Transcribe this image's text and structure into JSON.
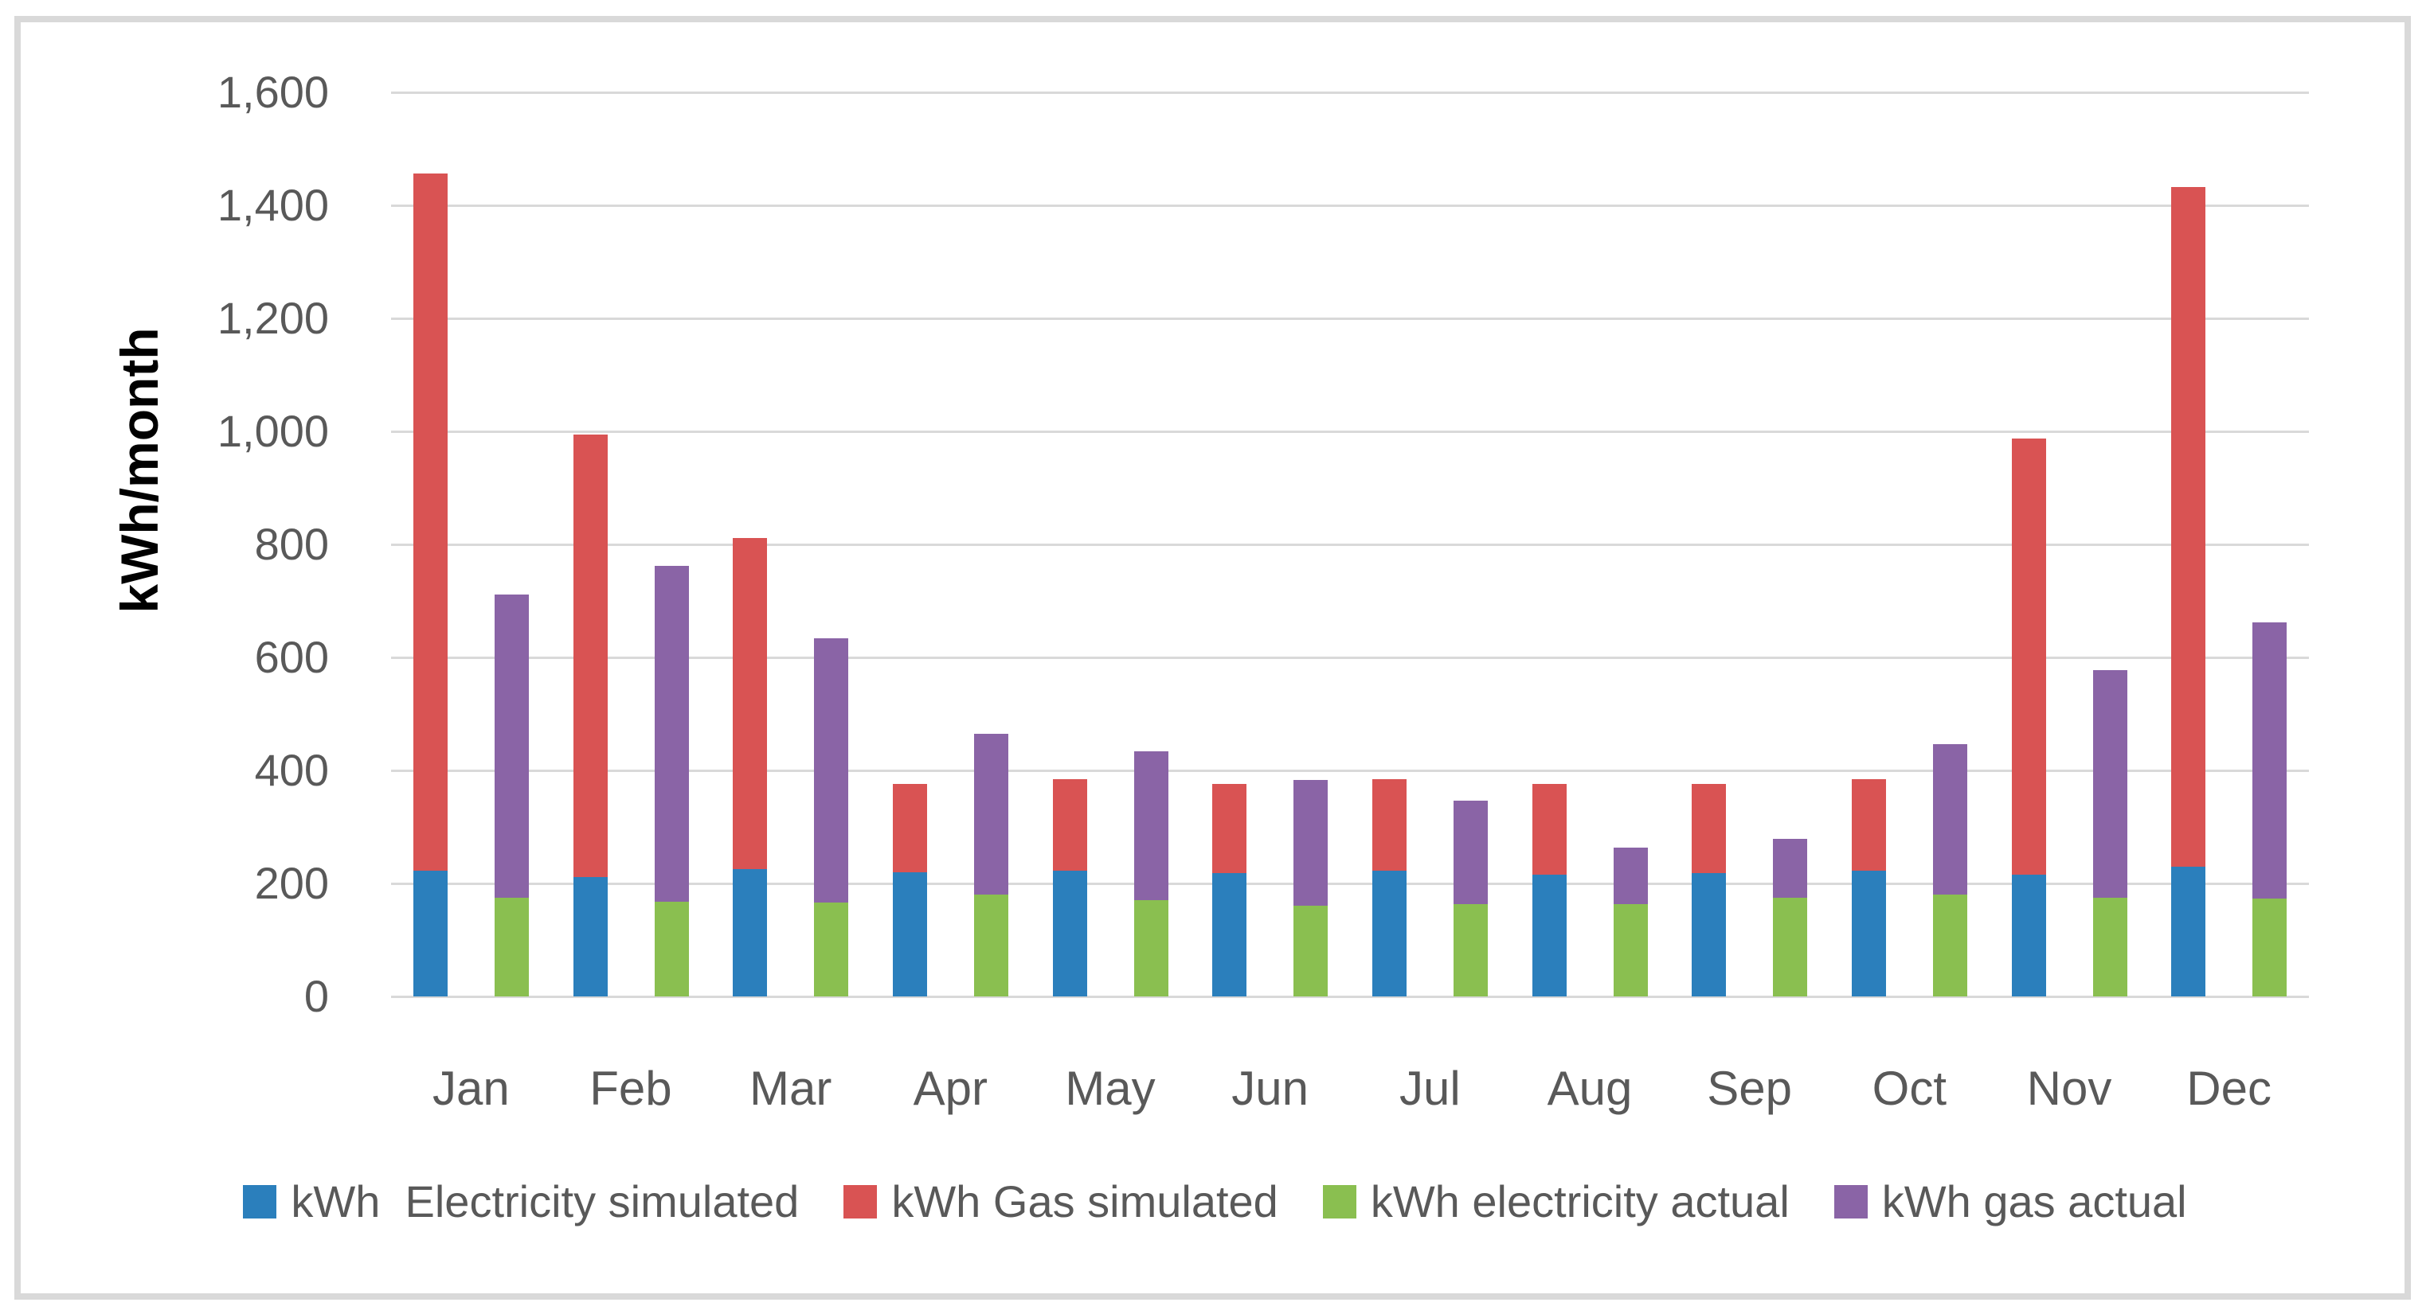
{
  "chart_data": {
    "type": "bar",
    "stacked": true,
    "title": "",
    "ylabel": "kWh/month",
    "xlabel": "",
    "ylim": [
      0,
      1600
    ],
    "ytick_step": 200,
    "ytick_labels": [
      "0",
      "200",
      "400",
      "600",
      "800",
      "1,000",
      "1,200",
      "1,400",
      "1,600"
    ],
    "grid": true,
    "legend_position": "bottom-center",
    "categories": [
      "Jan",
      "Feb",
      "Mar",
      "Apr",
      "May",
      "Jun",
      "Jul",
      "Aug",
      "Sep",
      "Oct",
      "Nov",
      "Dec"
    ],
    "series": [
      {
        "key": "electricity-simulated",
        "name": "kWh  Electricity simulated",
        "color": "#2B7FBC",
        "stack": "simulated",
        "values": [
          223,
          211,
          225,
          220,
          222,
          218,
          222,
          215,
          219,
          223,
          215,
          230
        ]
      },
      {
        "key": "gas-simulated",
        "name": "kWh Gas simulated",
        "color": "#D95353",
        "stack": "simulated",
        "values": [
          1233,
          783,
          586,
          156,
          163,
          158,
          163,
          161,
          157,
          162,
          773,
          1202
        ]
      },
      {
        "key": "electricity-actual",
        "name": "kWh electricity actual",
        "color": "#8ABF50",
        "stack": "actual",
        "values": [
          174,
          168,
          166,
          180,
          171,
          161,
          164,
          163,
          174,
          180,
          175,
          173
        ]
      },
      {
        "key": "gas-actual",
        "name": "kWh gas actual",
        "color": "#8A64A6",
        "stack": "actual",
        "values": [
          538,
          594,
          468,
          285,
          263,
          222,
          182,
          100,
          105,
          267,
          403,
          489
        ]
      }
    ],
    "stack_totals": {
      "simulated": [
        1456,
        994,
        811,
        376,
        385,
        376,
        385,
        376,
        376,
        385,
        988,
        1432
      ],
      "actual": [
        712,
        762,
        634,
        465,
        434,
        383,
        346,
        263,
        279,
        447,
        578,
        662
      ]
    },
    "colors": {
      "gridline": "#D9D9D9",
      "frame_border": "#D9D9D9",
      "axis_text": "#595959",
      "y_title_text": "#000000",
      "background": "#FFFFFF"
    }
  }
}
